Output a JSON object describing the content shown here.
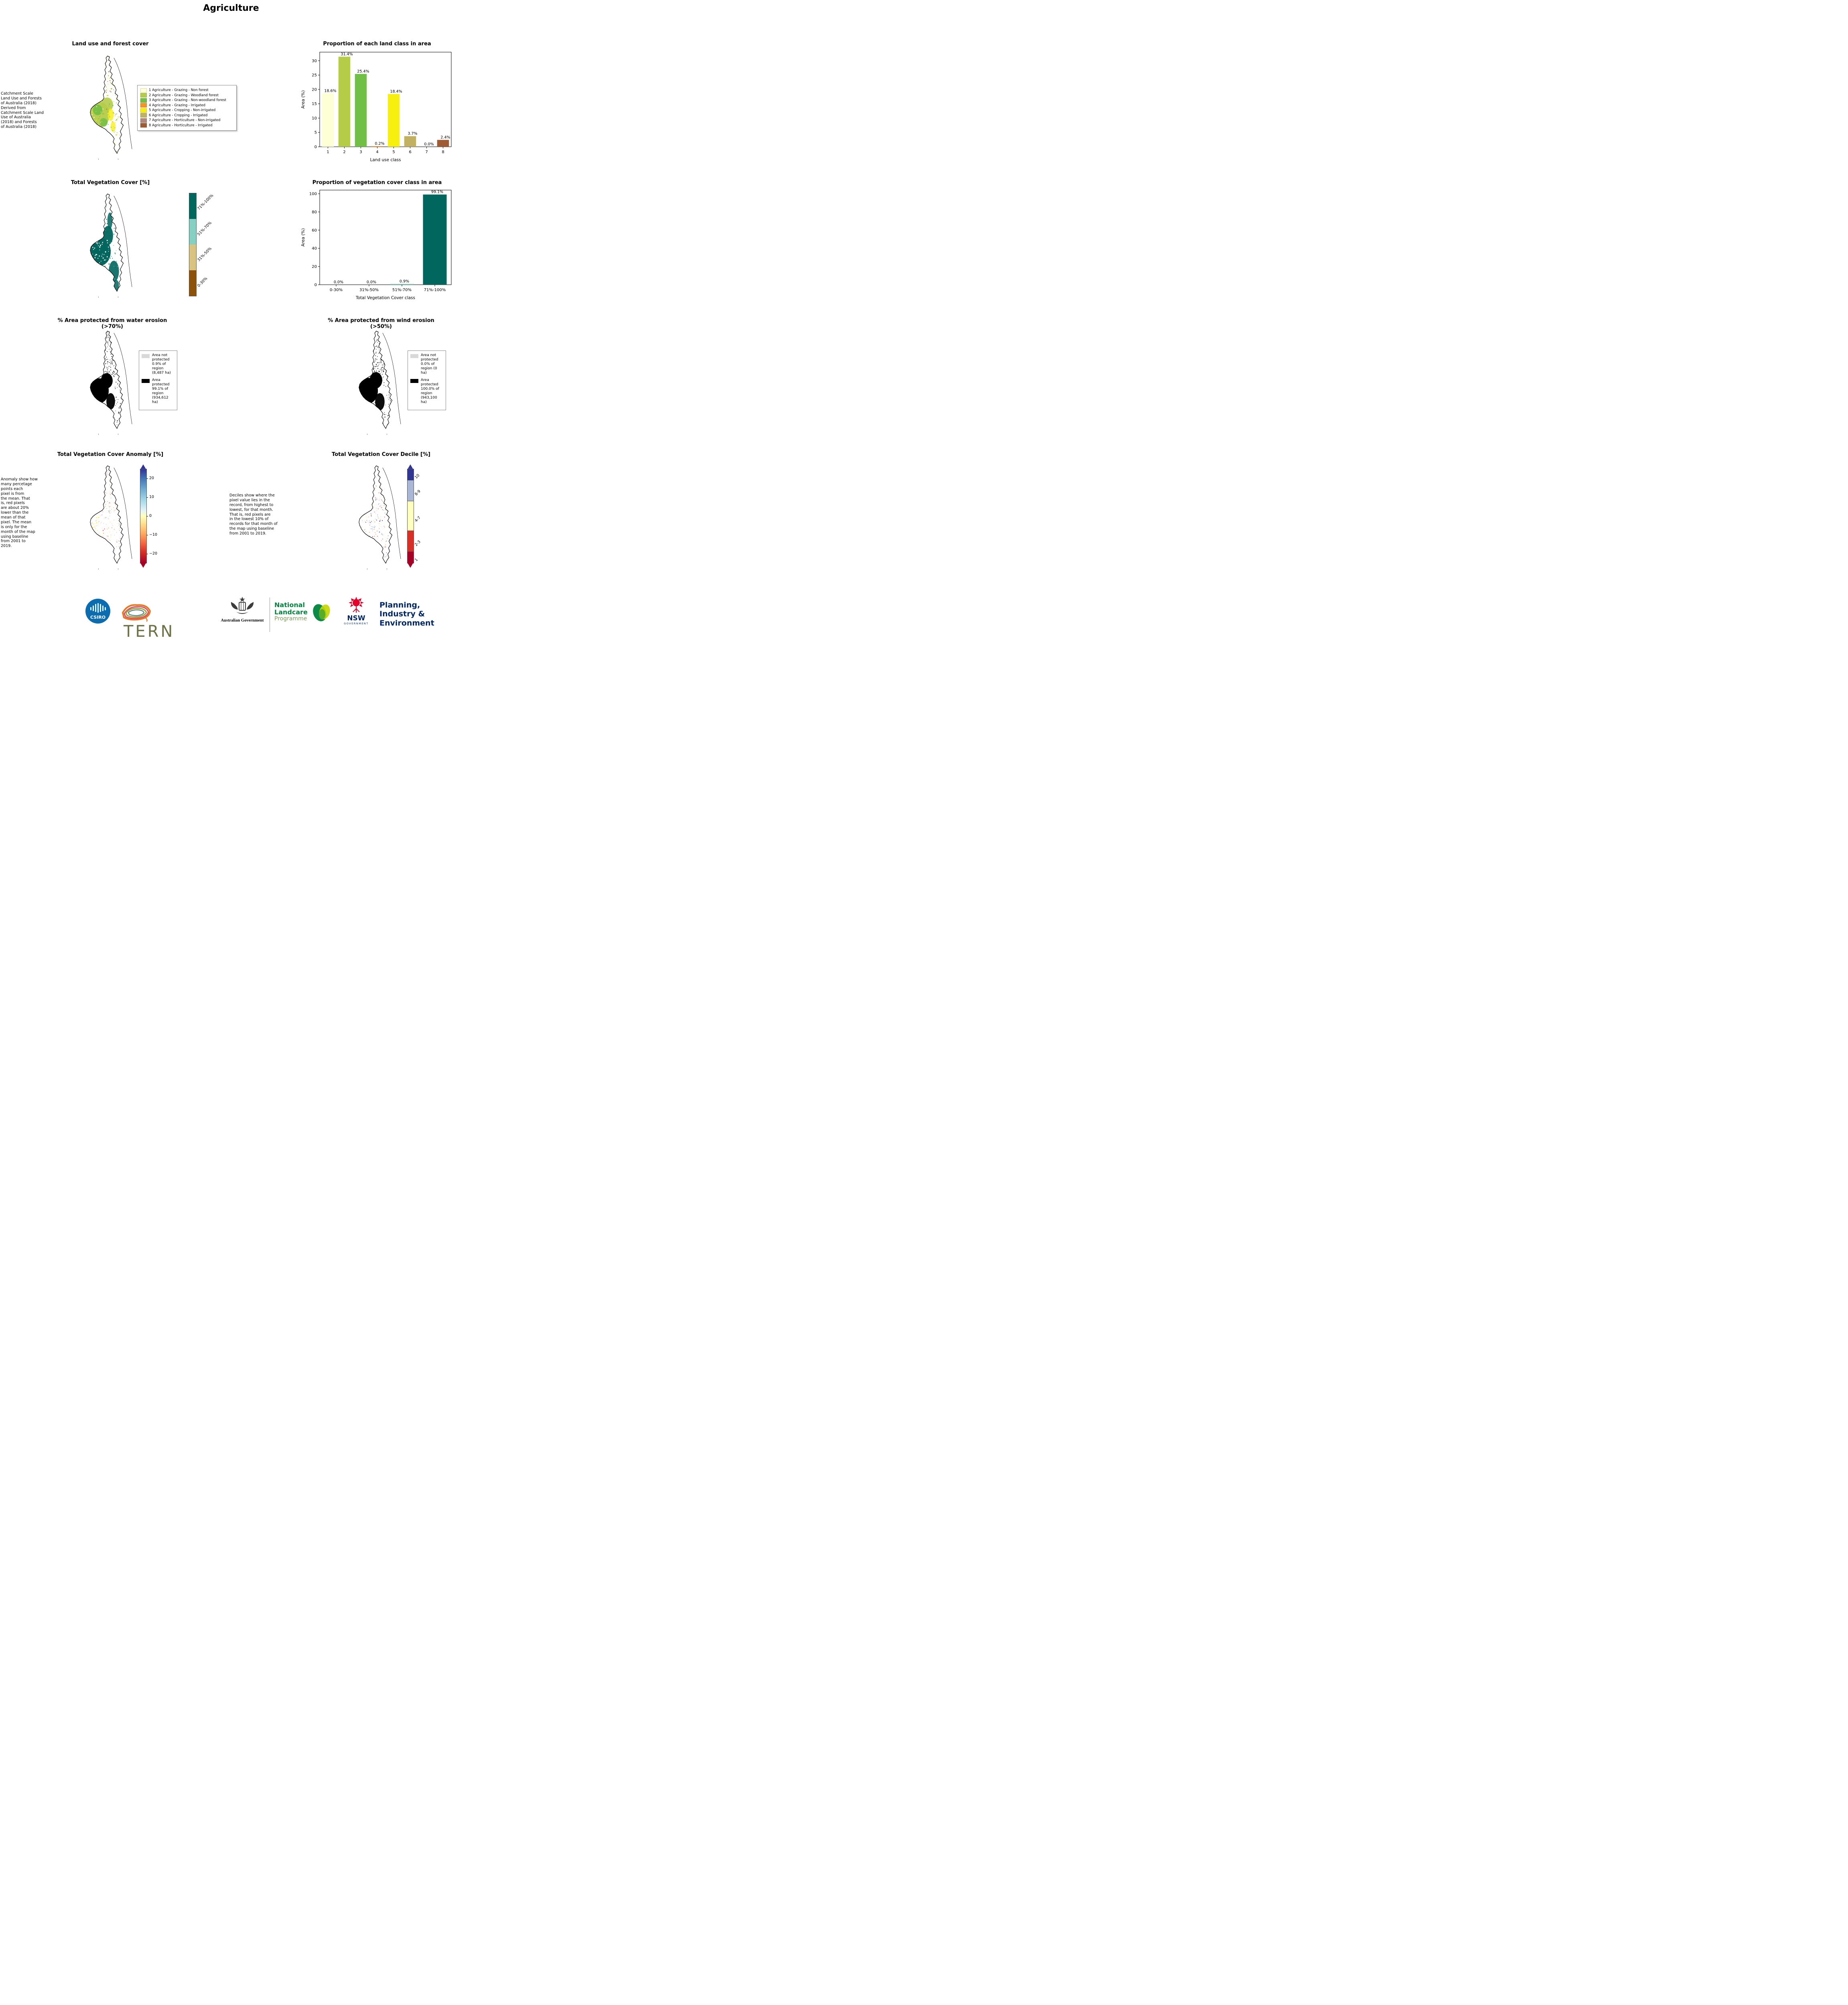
{
  "page": {
    "title": "Agriculture"
  },
  "chart_data": [
    {
      "type": "bar",
      "title": "Proportion of each land class in area",
      "categories": [
        "1",
        "2",
        "3",
        "4",
        "5",
        "6",
        "7",
        "8"
      ],
      "values": [
        18.6,
        31.4,
        25.4,
        0.2,
        18.4,
        3.7,
        0.0,
        2.4
      ],
      "labels": [
        "18.6%",
        "31.4%",
        "25.4%",
        "0.2%",
        "18.4%",
        "3.7%",
        "0.0%",
        "2.4%"
      ],
      "bar_colors": [
        "#ffffd6",
        "#b5cc49",
        "#71bf44",
        "#f7941d",
        "#f7ef0e",
        "#c3b163",
        "#b1897c",
        "#9f5b33"
      ],
      "xlabel": "Land use class",
      "ylabel": "Area (%)",
      "ylim": [
        0,
        33
      ],
      "yticks": [
        0,
        5,
        10,
        15,
        20,
        25,
        30
      ],
      "grid": false,
      "legend": "none"
    },
    {
      "type": "bar",
      "title": "Proportion of vegetation cover class in area",
      "categories": [
        "0-30%",
        "31%-50%",
        "51%-70%",
        "71%-100%"
      ],
      "values": [
        0.0,
        0.0,
        0.9,
        99.1
      ],
      "labels": [
        "0.0%",
        "0.0%",
        "0.9%",
        "99.1%"
      ],
      "bar_colors": [
        "#8c510a",
        "#d8c383",
        "#86cfc2",
        "#01665e"
      ],
      "xlabel": "Total Vegetation Cover class",
      "ylabel": "Area (%)",
      "ylim": [
        0,
        104
      ],
      "yticks": [
        0,
        20,
        40,
        60,
        80,
        100
      ],
      "grid": false,
      "legend": "none"
    }
  ],
  "panels": {
    "land_use": {
      "title": "Land use and forest cover",
      "caption": " Catchment Scale\nLand Use and Forests\nof Australia (2018)\nDerived from\nCatchment Scale Land\nUse of Australia\n(2018) and Forests\nof Australia (2018)",
      "legend": [
        {
          "label": "1 Agriculture - Grazing - Non forest",
          "color": "#ffffd6"
        },
        {
          "label": "2 Agriculture - Grazing - Woodland forest",
          "color": "#b5cc49"
        },
        {
          "label": "3 Agriculture - Grazing - Non-woodland forest",
          "color": "#71bf44"
        },
        {
          "label": "4 Agriculture - Grazing - Irrigated",
          "color": "#f7941d"
        },
        {
          "label": "5 Agriculture - Cropping - Non-irrigated",
          "color": "#f7ef0e"
        },
        {
          "label": "6 Agriculture - Cropping - Irrigated",
          "color": "#c3b163"
        },
        {
          "label": "7 Agriculture - Horticulture - Non-irrigated",
          "color": "#b1897c"
        },
        {
          "label": "8 Agriculture - Horticulture - Irrigated",
          "color": "#9f5b33"
        }
      ]
    },
    "veg_cover": {
      "title": "Total Vegetation Cover [%]",
      "colorbar": [
        {
          "label": "71%-100%",
          "color": "#01665e"
        },
        {
          "label": "51%-70%",
          "color": "#86cfc2"
        },
        {
          "label": "31%-50%",
          "color": "#d8c383"
        },
        {
          "label": "0-30%",
          "color": "#8c510a"
        }
      ]
    },
    "water_erosion": {
      "title": "% Area protected from water erosion (>70%)",
      "legend": [
        {
          "color": "#d9d9d9",
          "label": "Area not\nprotected\n0.9% of\nregion\n(8,487 ha)"
        },
        {
          "color": "#000000",
          "label": "Area\nprotected\n99.1% of\nregion\n(934,612\nha)"
        }
      ]
    },
    "wind_erosion": {
      "title": "% Area protected from wind erosion (>50%)",
      "legend": [
        {
          "color": "#d9d9d9",
          "label": "Area not\nprotected\n0.0% of\nregion (0\nha)"
        },
        {
          "color": "#000000",
          "label": "Area\nprotected\n100.0% of\nregion\n(943,100\nha)"
        }
      ]
    },
    "anomaly": {
      "title": "Total Vegetation Cover Anomaly [%]",
      "caption": "Anomaly show how\nmany percetage\npoints each\npixel is from\nthe mean. That\nis, red pixels\nare about 20%\nlower than the\nmean of that\npixel. The mean\nis only for the\nmonth of the map\nusing baseline\nfrom 2001 to\n2019.",
      "colorbar_ticks": [
        "20",
        "10",
        "0",
        "−10",
        "−20"
      ],
      "colorbar_range": [
        -25,
        25
      ]
    },
    "decile": {
      "title": "Total Vegetation Cover Decile [%]",
      "caption": "Deciles show where the\npixel value lies in the\nrecord, from highest to\nlowest, for that month.\nThat is, red pixels are\nin the lowest 10% of\nrecords for that month of\nthe map using baseline\nfrom 2001 to 2019.",
      "colorbar": [
        {
          "label": "10",
          "color": "#313695",
          "pct": 12
        },
        {
          "label": "8-9",
          "color": "#aab6d6",
          "pct": 22
        },
        {
          "label": "4-7",
          "color": "#ffffbf",
          "pct": 32
        },
        {
          "label": "2-3",
          "color": "#d73027",
          "pct": 22
        },
        {
          "label": "1",
          "color": "#a50026",
          "pct": 12
        }
      ]
    }
  },
  "maps": {
    "land_use_palette": [
      "#ffffd6",
      "#b5cc49",
      "#71bf44",
      "#f7941d",
      "#f7ef0e",
      "#c3b163",
      "#b1897c",
      "#9f5b33"
    ],
    "veg_teal": "#01665e",
    "veg_teal_light": "#4fa79d",
    "protected_black": "#000000",
    "not_protected_gray": "#d9d9d9",
    "anomaly_palette": [
      "#a50026",
      "#d73027",
      "#f46d43",
      "#fdae61",
      "#fee090",
      "#ffffbf",
      "#e0f3f8",
      "#abd9e9",
      "#74add1",
      "#4575b4",
      "#313695"
    ],
    "decile_palette": [
      "#a50026",
      "#d73027",
      "#ffffbf",
      "#aab6d6",
      "#313695"
    ]
  },
  "footer": {
    "csiro": "CSIRO",
    "tern": "TERN",
    "aus_gov": "Australian Government",
    "landcare": [
      "National",
      "Landcare",
      "Programme"
    ],
    "nsw": "NSW",
    "nsw_sub": "GOVERNMENT",
    "planning": [
      "Planning,",
      "Industry &",
      "Environment"
    ]
  },
  "colors": {
    "csiro_blue": "#0c6cb0",
    "tern_olive": "#6e7046",
    "landcare_green": "#00843D",
    "landcare_light": "#7c9a5d",
    "nsw_red": "#e4002b",
    "navy": "#002664"
  }
}
